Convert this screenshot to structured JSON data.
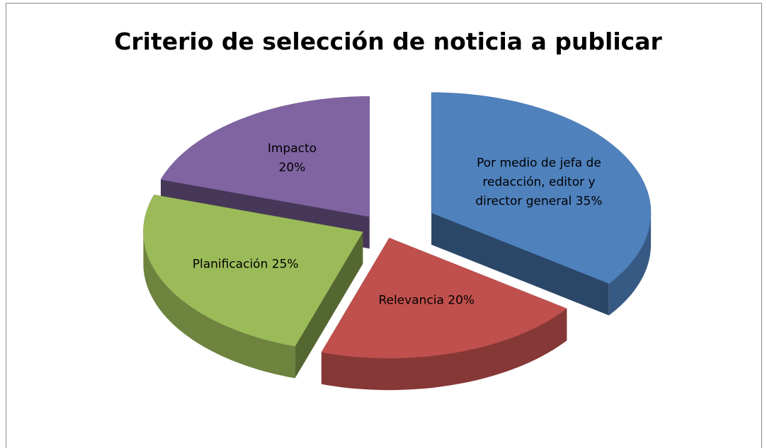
{
  "chart_data": {
    "type": "pie",
    "title": "Criterio de selección de noticia a publicar",
    "categories": [
      "Por medio de jefa de redacción, editor y director general",
      "Relevancia",
      "Planificación",
      "Impacto"
    ],
    "values": [
      35,
      20,
      25,
      20
    ],
    "value_labels": [
      "35%",
      "20%",
      "25%",
      "20%"
    ],
    "colors": [
      "#4f81bd",
      "#c0504d",
      "#9bbb59",
      "#8064a2"
    ]
  }
}
